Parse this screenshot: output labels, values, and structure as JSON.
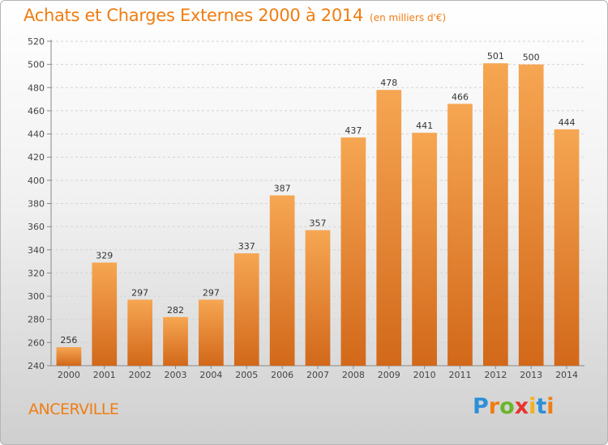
{
  "title": "Achats et Charges Externes 2000 à 2014",
  "unit": "(en milliers d'€)",
  "commune": "ANCERVILLE",
  "logo": {
    "text": "Proxiti",
    "colors": [
      "#2f8fd8",
      "#f07d12",
      "#6bb52a",
      "#e8342d",
      "#f2b21a"
    ]
  },
  "chart_data": {
    "type": "bar",
    "categories": [
      "2000",
      "2001",
      "2002",
      "2003",
      "2004",
      "2005",
      "2006",
      "2007",
      "2008",
      "2009",
      "2010",
      "2011",
      "2012",
      "2013",
      "2014"
    ],
    "values": [
      256,
      329,
      297,
      282,
      297,
      337,
      387,
      357,
      437,
      478,
      441,
      466,
      501,
      500,
      444
    ],
    "yticks": [
      240,
      260,
      280,
      300,
      320,
      340,
      360,
      380,
      400,
      420,
      440,
      460,
      480,
      500,
      520
    ],
    "ylim": [
      240,
      520
    ],
    "grid": true,
    "bar_color_top": "#f6a652",
    "bar_color_bottom": "#d2681a",
    "title": "Achats et Charges Externes 2000 à 2014",
    "xlabel": "",
    "ylabel": ""
  }
}
